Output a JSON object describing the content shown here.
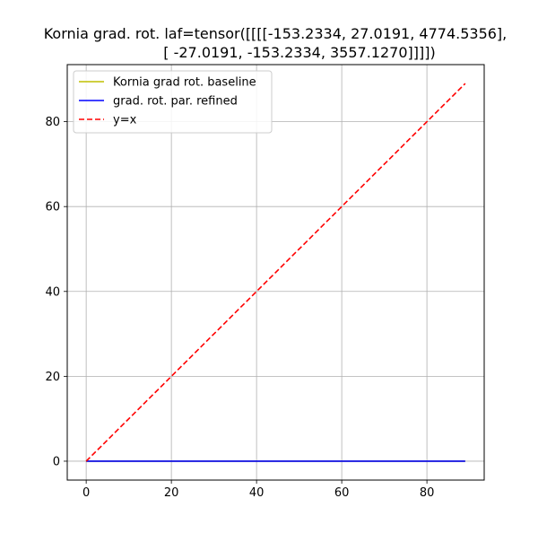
{
  "chart_data": {
    "type": "line",
    "title_lines": [
      "Kornia grad. rot. laf=tensor([[[[-153.2334,   27.0191, 4774.5356],",
      "[ -27.0191, -153.2334, 3557.1270]]]])"
    ],
    "xlabel": "",
    "ylabel": "",
    "xlim": [
      -4.45,
      93.45
    ],
    "ylim": [
      -4.45,
      93.45
    ],
    "xticks": [
      0,
      20,
      40,
      60,
      80
    ],
    "yticks": [
      0,
      20,
      40,
      60,
      80
    ],
    "grid": true,
    "legend_position": "top-left",
    "series": [
      {
        "name": "Kornia grad rot. baseline",
        "color": "#bfbf00",
        "dash": "solid",
        "x": [
          0,
          89
        ],
        "y": [
          0,
          0
        ]
      },
      {
        "name": "grad. rot. par. refined",
        "color": "#0000ff",
        "dash": "solid",
        "x": [
          0,
          89
        ],
        "y": [
          0,
          0
        ]
      },
      {
        "name": "y=x",
        "color": "#ff0000",
        "dash": "dashed",
        "x": [
          0,
          89
        ],
        "y": [
          0,
          89
        ]
      }
    ]
  }
}
